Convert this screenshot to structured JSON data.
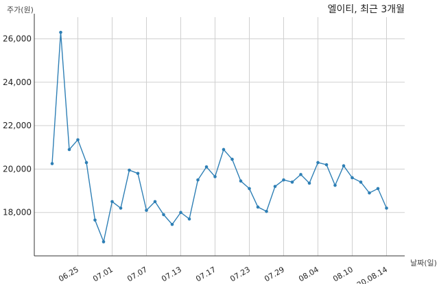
{
  "chart_data": {
    "type": "line",
    "title": "엘이티, 최근 3개월",
    "ylabel": "주가(원)",
    "xlabel": "날짜(일)",
    "ylim": [
      16000,
      27000
    ],
    "yticks": [
      18000,
      20000,
      22000,
      24000,
      26000
    ],
    "ytick_labels": [
      "18,000",
      "20,000",
      "22,000",
      "24,000",
      "26,000"
    ],
    "xtick_labels": [
      "06.25",
      "07.01",
      "07.07",
      "07.13",
      "07.17",
      "07.23",
      "07.29",
      "08.04",
      "08.10",
      "20.08.14"
    ],
    "xtick_index": [
      3,
      7,
      11,
      15,
      19,
      23,
      27,
      31,
      35,
      39
    ],
    "grid": true,
    "series": [
      {
        "color": "#2e7fb5",
        "values": [
          20250,
          26300,
          20900,
          21350,
          20300,
          17650,
          16650,
          18500,
          18200,
          19950,
          19800,
          18100,
          18500,
          17900,
          17450,
          18000,
          17700,
          19500,
          20100,
          19650,
          20900,
          20450,
          19450,
          19100,
          18250,
          18050,
          19200,
          19500,
          19400,
          19750,
          19350,
          20300,
          20200,
          19250,
          20150,
          19600,
          19400,
          18900,
          19100,
          18200
        ]
      }
    ]
  }
}
